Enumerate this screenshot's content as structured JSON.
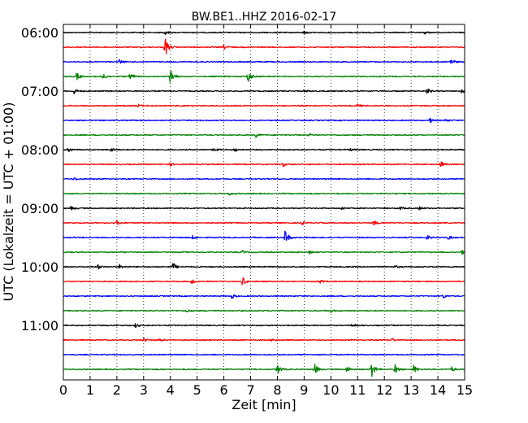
{
  "chart_data": {
    "type": "line",
    "title": "BW.BE1..HHZ 2016-02-17",
    "xlabel": "Zeit  [min]",
    "ylabel": "UTC (Lokalzeit = UTC + 01:00)",
    "xlim": [
      0,
      15
    ],
    "x_ticks": [
      "0",
      "1",
      "2",
      "3",
      "4",
      "5",
      "6",
      "7",
      "8",
      "9",
      "10",
      "11",
      "12",
      "13",
      "14",
      "15"
    ],
    "y_tick_labels": [
      "06:00",
      "07:00",
      "08:00",
      "09:00",
      "10:00",
      "11:00"
    ],
    "grid": "vertical dotted",
    "row_interval_min": 15,
    "row_colors": [
      "#000000",
      "#ff0000",
      "#0000ff",
      "#008000"
    ],
    "series": [
      {
        "start": "06:00",
        "events": [
          {
            "t": 3.8,
            "a": 0.3
          },
          {
            "t": 9.0,
            "a": 0.2
          },
          {
            "t": 13.5,
            "a": 0.2
          }
        ]
      },
      {
        "start": "06:15",
        "events": [
          {
            "t": 3.8,
            "a": 1.6
          },
          {
            "t": 6.0,
            "a": 0.3
          }
        ]
      },
      {
        "start": "06:30",
        "events": [
          {
            "t": 2.1,
            "a": 0.3
          },
          {
            "t": 14.5,
            "a": 0.5
          }
        ]
      },
      {
        "start": "06:45",
        "events": [
          {
            "t": 0.5,
            "a": 0.5
          },
          {
            "t": 1.5,
            "a": 0.5
          },
          {
            "t": 2.5,
            "a": 0.6
          },
          {
            "t": 4.0,
            "a": 1.3
          },
          {
            "t": 6.9,
            "a": 0.9
          }
        ]
      },
      {
        "start": "07:00",
        "events": [
          {
            "t": 0.4,
            "a": 0.4
          },
          {
            "t": 9.0,
            "a": 0.2
          },
          {
            "t": 13.6,
            "a": 0.4
          },
          {
            "t": 14.9,
            "a": 0.3
          }
        ]
      },
      {
        "start": "07:15",
        "events": [
          {
            "t": 2.8,
            "a": 0.2
          },
          {
            "t": 11.0,
            "a": 0.2
          }
        ]
      },
      {
        "start": "07:30",
        "events": [
          {
            "t": 13.7,
            "a": 0.3
          },
          {
            "t": 14.3,
            "a": 0.2
          }
        ]
      },
      {
        "start": "07:45",
        "events": [
          {
            "t": 7.2,
            "a": 0.3
          },
          {
            "t": 9.2,
            "a": 0.2
          }
        ]
      },
      {
        "start": "08:00",
        "events": [
          {
            "t": 0.2,
            "a": 0.3
          },
          {
            "t": 1.8,
            "a": 0.3
          },
          {
            "t": 5.6,
            "a": 0.3
          },
          {
            "t": 6.4,
            "a": 0.3
          },
          {
            "t": 10.7,
            "a": 0.2
          }
        ]
      },
      {
        "start": "08:15",
        "events": [
          {
            "t": 4.0,
            "a": 0.2
          },
          {
            "t": 8.2,
            "a": 0.3
          },
          {
            "t": 14.1,
            "a": 0.4
          }
        ]
      },
      {
        "start": "08:30",
        "events": [
          {
            "t": 0.4,
            "a": 0.2
          }
        ]
      },
      {
        "start": "08:45",
        "events": [
          {
            "t": 6.2,
            "a": 0.2
          }
        ]
      },
      {
        "start": "09:00",
        "events": [
          {
            "t": 0.3,
            "a": 0.3
          },
          {
            "t": 10.4,
            "a": 0.2
          },
          {
            "t": 12.6,
            "a": 0.2
          },
          {
            "t": 13.3,
            "a": 0.2
          }
        ]
      },
      {
        "start": "09:15",
        "events": [
          {
            "t": 2.0,
            "a": 0.3
          },
          {
            "t": 8.9,
            "a": 0.3
          },
          {
            "t": 11.6,
            "a": 0.4
          }
        ]
      },
      {
        "start": "09:30",
        "events": [
          {
            "t": 4.8,
            "a": 0.3
          },
          {
            "t": 8.3,
            "a": 1.2
          },
          {
            "t": 13.6,
            "a": 0.3
          },
          {
            "t": 14.4,
            "a": 0.3
          }
        ]
      },
      {
        "start": "09:45",
        "events": [
          {
            "t": 6.7,
            "a": 0.2
          },
          {
            "t": 9.2,
            "a": 0.2
          },
          {
            "t": 14.9,
            "a": 0.3
          }
        ]
      },
      {
        "start": "10:00",
        "events": [
          {
            "t": 1.3,
            "a": 0.3
          },
          {
            "t": 2.1,
            "a": 0.3
          },
          {
            "t": 4.1,
            "a": 0.6
          },
          {
            "t": 12.4,
            "a": 0.2
          }
        ]
      },
      {
        "start": "10:15",
        "events": [
          {
            "t": 4.8,
            "a": 0.3
          },
          {
            "t": 6.7,
            "a": 0.7
          },
          {
            "t": 9.6,
            "a": 0.2
          }
        ]
      },
      {
        "start": "10:30",
        "events": [
          {
            "t": 6.3,
            "a": 0.3
          },
          {
            "t": 14.2,
            "a": 0.3
          }
        ]
      },
      {
        "start": "10:45",
        "events": [
          {
            "t": 4.6,
            "a": 0.2
          },
          {
            "t": 10.0,
            "a": 0.2
          }
        ]
      },
      {
        "start": "11:00",
        "events": [
          {
            "t": 2.7,
            "a": 0.3
          },
          {
            "t": 10.8,
            "a": 0.2
          }
        ]
      },
      {
        "start": "11:15",
        "events": [
          {
            "t": 3.0,
            "a": 0.3
          },
          {
            "t": 3.6,
            "a": 0.2
          },
          {
            "t": 7.8,
            "a": 0.2
          },
          {
            "t": 12.3,
            "a": 0.2
          }
        ]
      },
      {
        "start": "11:30",
        "events": []
      },
      {
        "start": "11:45",
        "events": [
          {
            "t": 8.0,
            "a": 0.7
          },
          {
            "t": 9.4,
            "a": 0.8
          },
          {
            "t": 10.6,
            "a": 0.5
          },
          {
            "t": 11.5,
            "a": 1.6
          },
          {
            "t": 12.4,
            "a": 0.6
          },
          {
            "t": 13.1,
            "a": 0.6
          },
          {
            "t": 14.5,
            "a": 0.4
          }
        ]
      }
    ]
  }
}
